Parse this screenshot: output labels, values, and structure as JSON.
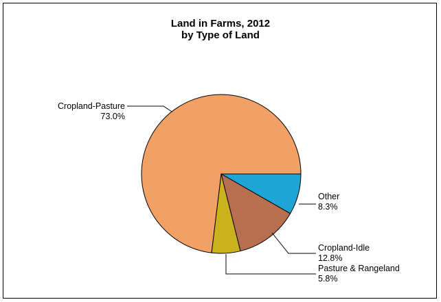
{
  "chart_data": {
    "type": "pie",
    "title_line1": "Land in Farms, 2012",
    "title_line2": "by Type of Land",
    "slices": [
      {
        "label": "Other",
        "pct_label": "8.3%",
        "value": 8.3,
        "color": "#1ea5d6"
      },
      {
        "label": "Cropland-Idle",
        "pct_label": "12.8%",
        "value": 12.8,
        "color": "#b86f4f"
      },
      {
        "label": "Pasture & Rangeland",
        "pct_label": "5.8%",
        "value": 5.8,
        "color": "#cbb11e"
      },
      {
        "label": "Cropland-Pasture",
        "pct_label": "73.0%",
        "value": 73.0,
        "color": "#f1a066"
      }
    ]
  }
}
